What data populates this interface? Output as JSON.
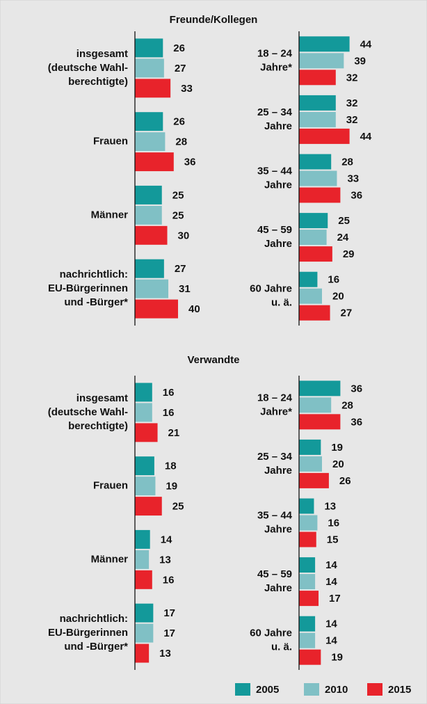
{
  "chart_data": [
    {
      "type": "bar",
      "orientation": "horizontal",
      "title": "Freunde/Kollegen",
      "categories": [
        [
          "insgesamt",
          "(deutsche Wahl-",
          "berechtigte)"
        ],
        [
          "Frauen"
        ],
        [
          "Männer"
        ],
        [
          "nachrichtlich:",
          "EU-Bürgerinnen",
          "und -Bürger*"
        ]
      ],
      "series": [
        {
          "color": "#13999a",
          "values": [
            26,
            26,
            25,
            27
          ]
        },
        {
          "color": "#80c0c5",
          "values": [
            27,
            28,
            25,
            31
          ]
        },
        {
          "color": "#e8232b",
          "values": [
            33,
            36,
            30,
            40
          ]
        }
      ],
      "xlim": [
        0,
        60
      ]
    },
    {
      "type": "bar",
      "orientation": "horizontal",
      "categories": [
        [
          "18 – 24",
          "Jahre*"
        ],
        [
          "25 – 34",
          "Jahre"
        ],
        [
          "35 – 44",
          "Jahre"
        ],
        [
          "45 – 59",
          "Jahre"
        ],
        [
          "60 Jahre",
          "u. ä."
        ]
      ],
      "series": [
        {
          "color": "#13999a",
          "values": [
            44,
            32,
            28,
            25,
            16
          ]
        },
        {
          "color": "#80c0c5",
          "values": [
            39,
            32,
            33,
            24,
            20
          ]
        },
        {
          "color": "#e8232b",
          "values": [
            32,
            44,
            36,
            29,
            27
          ]
        }
      ],
      "xlim": [
        0,
        60
      ]
    },
    {
      "type": "bar",
      "orientation": "horizontal",
      "title": "Verwandte",
      "categories": [
        [
          "insgesamt",
          "(deutsche Wahl-",
          "berechtigte)"
        ],
        [
          "Frauen"
        ],
        [
          "Männer"
        ],
        [
          "nachrichtlich:",
          "EU-Bürgerinnen",
          "und -Bürger*"
        ]
      ],
      "series": [
        {
          "color": "#13999a",
          "values": [
            16,
            18,
            14,
            17
          ]
        },
        {
          "color": "#80c0c5",
          "values": [
            16,
            19,
            13,
            17
          ]
        },
        {
          "color": "#e8232b",
          "values": [
            21,
            25,
            16,
            13
          ]
        }
      ],
      "xlim": [
        0,
        60
      ]
    },
    {
      "type": "bar",
      "orientation": "horizontal",
      "categories": [
        [
          "18 – 24",
          "Jahre*"
        ],
        [
          "25 – 34",
          "Jahre"
        ],
        [
          "35 – 44",
          "Jahre"
        ],
        [
          "45 – 59",
          "Jahre"
        ],
        [
          "60 Jahre",
          "u. ä."
        ]
      ],
      "series": [
        {
          "color": "#13999a",
          "values": [
            36,
            19,
            13,
            14,
            14
          ]
        },
        {
          "color": "#80c0c5",
          "values": [
            28,
            20,
            16,
            14,
            14
          ]
        },
        {
          "color": "#e8232b",
          "values": [
            36,
            26,
            15,
            17,
            19
          ]
        }
      ],
      "xlim": [
        0,
        60
      ]
    }
  ],
  "legend": [
    "2005",
    "2010",
    "2015"
  ]
}
